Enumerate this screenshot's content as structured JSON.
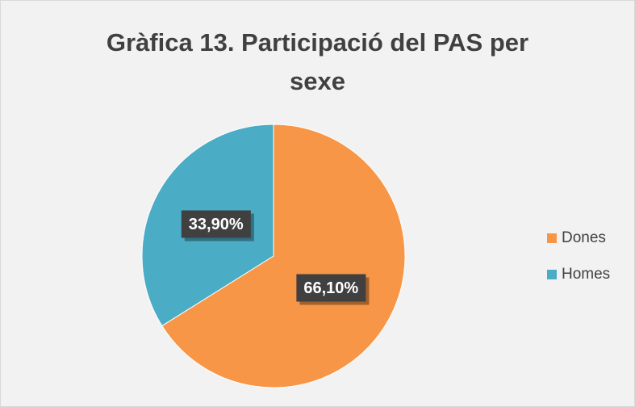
{
  "chart_data": {
    "type": "pie",
    "title": "Gràfica 13. Participació del PAS per sexe",
    "categories": [
      "Dones",
      "Homes"
    ],
    "values": [
      66.1,
      33.9
    ],
    "value_labels": [
      "66,10%",
      "33,90%"
    ],
    "colors": [
      "#f79646",
      "#4bacc6"
    ],
    "legend": "right"
  }
}
